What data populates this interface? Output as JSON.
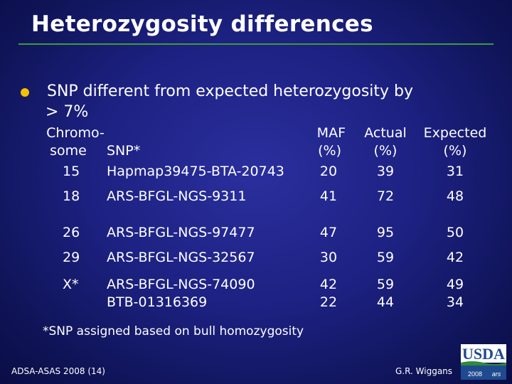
{
  "slide": {
    "title": "Heterozygosity differences",
    "bullet_line1": "SNP different from expected heterozygosity by",
    "bullet_line2": "> 7%"
  },
  "table": {
    "headers": {
      "chromosome_l1": "Chromo-",
      "chromosome_l2": "some",
      "snp": "SNP*",
      "maf_l1": "MAF",
      "maf_l2": "(%)",
      "actual_l1": "Actual",
      "actual_l2": "(%)",
      "expected_l1": "Expected",
      "expected_l2": "(%)"
    },
    "rows": [
      {
        "chromosome": "15",
        "snp": "Hapmap39475-BTA-20743",
        "maf": "20",
        "actual": "39",
        "expected": "31"
      },
      {
        "chromosome": "18",
        "snp": "ARS-BFGL-NGS-9311",
        "maf": "41",
        "actual": "72",
        "expected": "48"
      },
      {
        "chromosome": "26",
        "snp": "ARS-BFGL-NGS-97477",
        "maf": "47",
        "actual": "95",
        "expected": "50"
      },
      {
        "chromosome": "29",
        "snp": "ARS-BFGL-NGS-32567",
        "maf": "30",
        "actual": "59",
        "expected": "42"
      },
      {
        "chromosome": "X*",
        "snp": "ARS-BFGL-NGS-74090",
        "snp_line2": "BTB-01316369",
        "maf": "42",
        "maf_line2": "22",
        "actual": "59",
        "actual_line2": "44",
        "expected": "49",
        "expected_line2": "34"
      }
    ]
  },
  "footnote": "*SNP assigned based on bull homozygosity",
  "footer": {
    "left": "ADSA-ASAS 2008 (14)",
    "right": "G.R. Wiggans"
  },
  "logo": {
    "text": "USDA",
    "year": "2008",
    "mark": "ars"
  },
  "colors": {
    "title_rule": "#3f9a3a",
    "bullet": "#f2c200",
    "logo_blue": "#1f4a8f",
    "logo_green": "#2f8a3a"
  }
}
